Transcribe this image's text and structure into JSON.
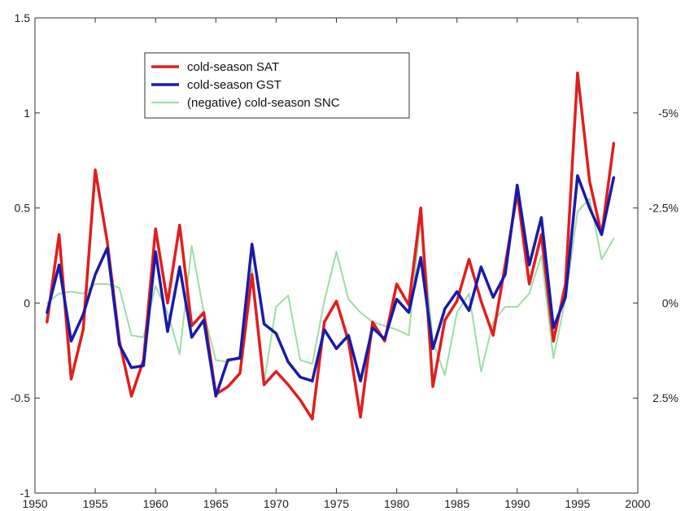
{
  "chart_data": {
    "type": "line",
    "title": "",
    "xlabel": "",
    "ylabel": "",
    "xlim": [
      1950,
      2000
    ],
    "ylim": [
      -1,
      1.5
    ],
    "x_ticks": [
      1950,
      1955,
      1960,
      1965,
      1970,
      1975,
      1980,
      1985,
      1990,
      1995,
      2000
    ],
    "y_ticks": [
      -1,
      -0.5,
      0,
      0.5,
      1,
      1.5
    ],
    "y_tick_labels": [
      "-1",
      "-0.5",
      "0",
      "0.5",
      "1",
      "1.5"
    ],
    "right_axis": {
      "tick_positions": [
        1,
        0.5,
        0,
        -0.5
      ],
      "tick_labels": [
        "-5%",
        "-2.5%",
        "0%",
        "2.5%"
      ]
    },
    "grid": false,
    "legend_position": "upper-left-center",
    "x": [
      1951,
      1952,
      1953,
      1954,
      1955,
      1956,
      1957,
      1958,
      1959,
      1960,
      1961,
      1962,
      1963,
      1964,
      1965,
      1966,
      1967,
      1968,
      1969,
      1970,
      1971,
      1972,
      1973,
      1974,
      1975,
      1976,
      1977,
      1978,
      1979,
      1980,
      1981,
      1982,
      1983,
      1984,
      1985,
      1986,
      1987,
      1988,
      1989,
      1990,
      1991,
      1992,
      1993,
      1994,
      1995,
      1996,
      1997,
      1998
    ],
    "series": [
      {
        "name": "cold-season SAT",
        "color": "#e01e1e",
        "values": [
          -0.1,
          0.36,
          -0.4,
          -0.14,
          0.7,
          0.32,
          -0.2,
          -0.49,
          -0.3,
          0.39,
          0,
          0.41,
          -0.12,
          -0.05,
          -0.48,
          -0.44,
          -0.37,
          0.15,
          -0.43,
          -0.36,
          -0.43,
          -0.51,
          -0.61,
          -0.1,
          0.01,
          -0.2,
          -0.6,
          -0.1,
          -0.2,
          0.1,
          -0.01,
          0.5,
          -0.44,
          -0.09,
          0.01,
          0.23,
          0.01,
          -0.17,
          0.2,
          0.58,
          0.1,
          0.36,
          -0.2,
          0.1,
          1.21,
          0.64,
          0.36,
          0.84
        ]
      },
      {
        "name": "cold-season GST",
        "color": "#1a1aa8",
        "values": [
          -0.05,
          0.2,
          -0.2,
          -0.06,
          0.15,
          0.29,
          -0.22,
          -0.34,
          -0.33,
          0.27,
          -0.15,
          0.19,
          -0.18,
          -0.09,
          -0.49,
          -0.3,
          -0.29,
          0.31,
          -0.11,
          -0.16,
          -0.31,
          -0.39,
          -0.41,
          -0.14,
          -0.24,
          -0.17,
          -0.41,
          -0.13,
          -0.19,
          0.02,
          -0.05,
          0.24,
          -0.24,
          -0.03,
          0.06,
          -0.04,
          0.19,
          0.03,
          0.15,
          0.62,
          0.2,
          0.45,
          -0.13,
          0.03,
          0.67,
          0.5,
          0.36,
          0.66
        ]
      },
      {
        "name": "(negative) cold-season SNC",
        "color": "#9fdca6",
        "values": [
          0,
          0.05,
          0.06,
          0.05,
          0.1,
          0.1,
          0.08,
          -0.17,
          -0.18,
          0.09,
          -0.05,
          -0.27,
          0.3,
          -0.05,
          -0.3,
          -0.31,
          -0.28,
          0.18,
          -0.42,
          -0.02,
          0.04,
          -0.3,
          -0.32,
          0.01,
          0.27,
          0.02,
          -0.05,
          -0.1,
          -0.12,
          -0.14,
          -0.17,
          0.45,
          -0.2,
          -0.38,
          -0.05,
          0.05,
          -0.36,
          -0.1,
          -0.02,
          -0.02,
          0.05,
          0.25,
          -0.29,
          0.02,
          0.48,
          0.55,
          0.23,
          0.34
        ]
      }
    ]
  }
}
